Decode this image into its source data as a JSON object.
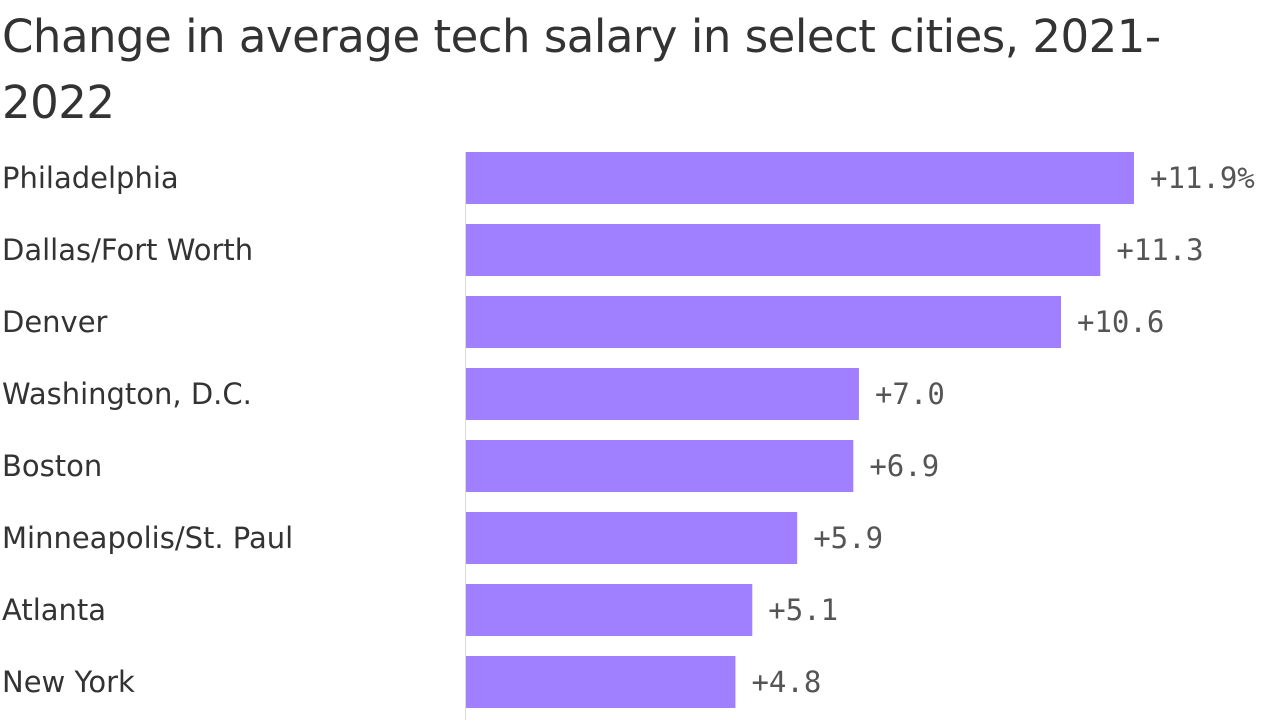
{
  "chart_data": {
    "type": "bar",
    "orientation": "horizontal",
    "title": "Change in average tech salary in select cities, 2021-2022",
    "categories": [
      "Philadelphia",
      "Dallas/Fort Worth",
      "Denver",
      "Washington, D.C.",
      "Boston",
      "Minneapolis/St. Paul",
      "Atlanta",
      "New York"
    ],
    "values": [
      11.9,
      11.3,
      10.6,
      7.0,
      6.9,
      5.9,
      5.1,
      4.8
    ],
    "value_labels": [
      "+11.9%",
      "+11.3",
      "+10.6",
      "+7.0",
      "+6.9",
      "+5.9",
      "+5.1",
      "+4.8"
    ],
    "unit": "%",
    "xlim": [
      0,
      11.9
    ],
    "grid": false,
    "legend": "none",
    "colors": {
      "bar": "#a080ff",
      "baseline": "#d9d9d9",
      "text": "#333333",
      "value_text": "#555555"
    }
  }
}
